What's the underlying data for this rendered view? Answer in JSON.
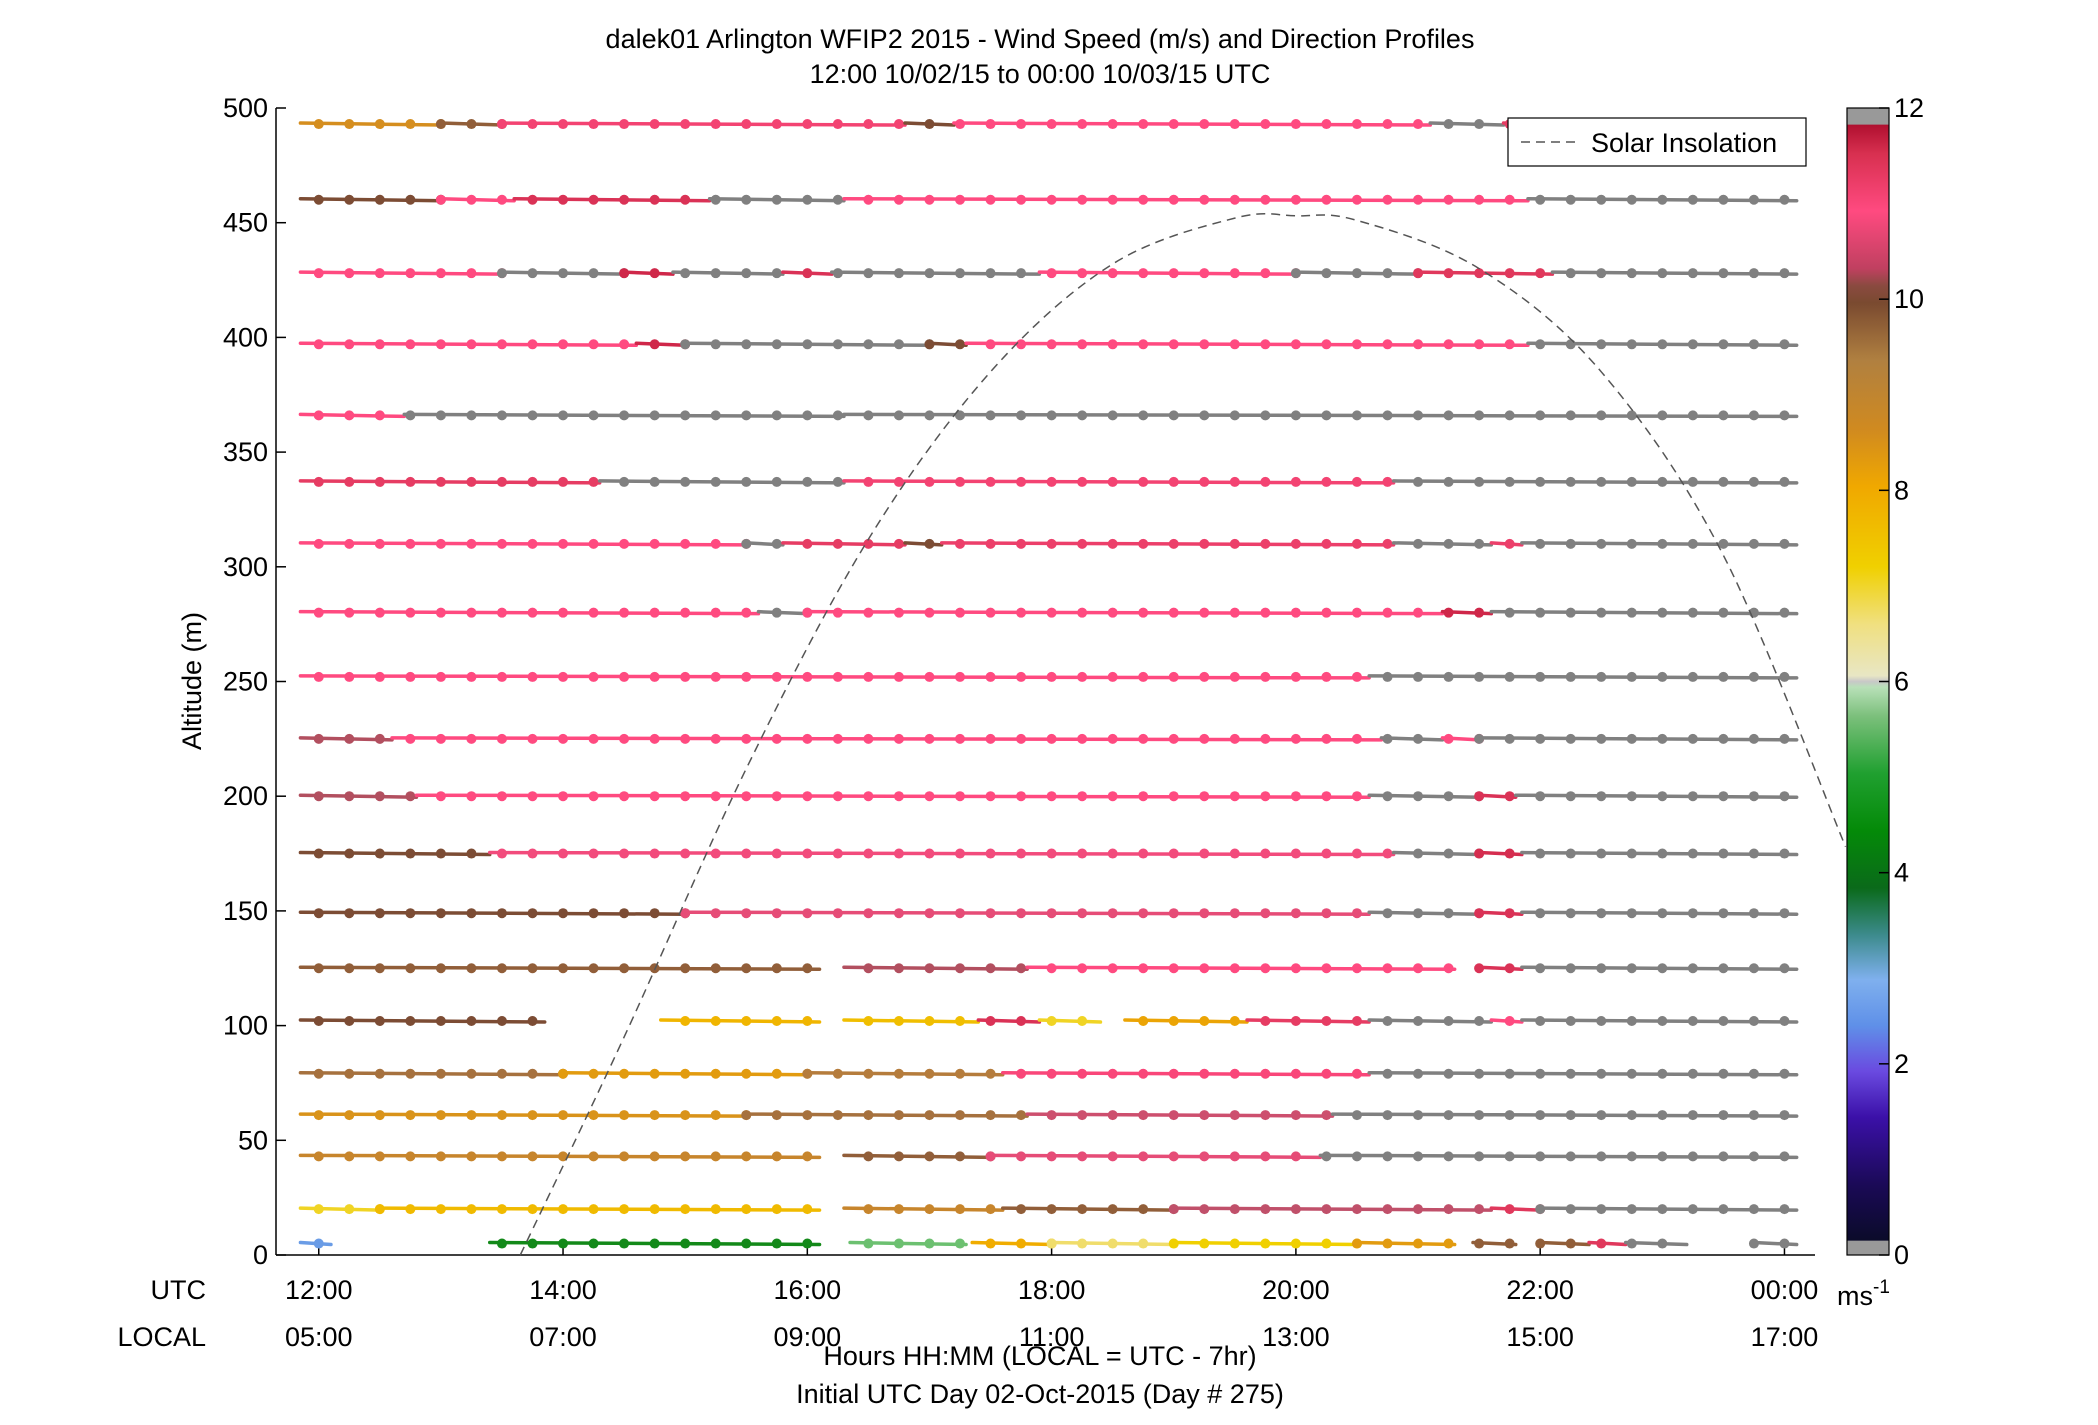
{
  "chart_data": {
    "type": "wind-barb-profile",
    "title": "dalek01 Arlington WFIP2 2015 - Wind Speed (m/s) and Direction Profiles",
    "subtitle": "12:00 10/02/15 to 00:00 10/03/15  UTC",
    "ylabel": "Altitude (m)",
    "ylim": [
      0,
      500
    ],
    "yticks": [
      0,
      50,
      100,
      150,
      200,
      250,
      300,
      350,
      400,
      450,
      500
    ],
    "xlim_hours": [
      11.65,
      24.25
    ],
    "x_utc_row_label": "UTC",
    "x_local_row_label": "LOCAL",
    "x_ticks_utc": [
      "12:00",
      "14:00",
      "16:00",
      "18:00",
      "20:00",
      "22:00",
      "00:00"
    ],
    "x_ticks_local": [
      "05:00",
      "07:00",
      "09:00",
      "11:00",
      "13:00",
      "15:00",
      "17:00"
    ],
    "x_tick_hours": [
      12,
      14,
      16,
      18,
      20,
      22,
      24
    ],
    "xlabel": "Hours HH:MM  (LOCAL = UTC - 7hr)",
    "xlabel2": "Initial UTC Day 02-Oct-2015 (Day # 275)",
    "legend": [
      "Solar Insolation"
    ],
    "legend_position": "top-right",
    "colorbar": {
      "range": [
        0,
        12
      ],
      "ticks": [
        0,
        2,
        4,
        6,
        8,
        10,
        12
      ],
      "unit_base": "ms",
      "unit_exp": "-1"
    },
    "solar_insolation_curve": {
      "description_free": false,
      "x_hours": [
        13.65,
        14.5,
        15.5,
        16.5,
        17.5,
        18.5,
        19.5,
        20.0,
        20.5,
        21.5,
        22.5,
        23.5,
        24.5
      ],
      "y_altitude": [
        0,
        95,
        212,
        312,
        385,
        432,
        452,
        453,
        451,
        430,
        385,
        305,
        178
      ]
    },
    "levels_m": [
      5,
      20,
      43,
      61,
      79,
      102,
      125,
      149,
      175,
      200,
      225,
      252,
      280,
      310,
      337,
      366,
      397,
      428,
      460,
      493
    ],
    "series": [
      {
        "alt": 5,
        "start": 11.85,
        "end": 12.1,
        "speed": 2.3
      },
      {
        "alt": 5,
        "start": 13.4,
        "end": 16.1,
        "speed": 4.0
      },
      {
        "alt": 5,
        "start": 16.35,
        "end": 17.3,
        "speed": 5.2
      },
      {
        "alt": 5,
        "start": 17.35,
        "end": 18.0,
        "speed": 7.8
      },
      {
        "alt": 5,
        "start": 18.0,
        "end": 19.0,
        "speed": 6.4
      },
      {
        "alt": 5,
        "start": 19.0,
        "end": 20.5,
        "speed": 7.0
      },
      {
        "alt": 5,
        "start": 20.5,
        "end": 21.3,
        "speed": 8.2
      },
      {
        "alt": 5,
        "start": 21.45,
        "end": 21.8,
        "speed": 9.6
      },
      {
        "alt": 5,
        "start": 22.0,
        "end": 22.4,
        "speed": 9.6
      },
      {
        "alt": 5,
        "start": 22.4,
        "end": 22.7,
        "speed": 11.3
      },
      {
        "alt": 5,
        "start": 22.7,
        "end": 23.2,
        "speed": 12.5
      },
      {
        "alt": 5,
        "start": 23.75,
        "end": 24.1,
        "speed": 12.5
      },
      {
        "alt": 20,
        "start": 11.85,
        "end": 12.5,
        "speed": 6.8
      },
      {
        "alt": 20,
        "start": 12.5,
        "end": 16.1,
        "speed": 7.5
      },
      {
        "alt": 20,
        "start": 16.3,
        "end": 17.6,
        "speed": 8.8
      },
      {
        "alt": 20,
        "start": 17.6,
        "end": 19.0,
        "speed": 9.6
      },
      {
        "alt": 20,
        "start": 19.0,
        "end": 21.6,
        "speed": 10.3
      },
      {
        "alt": 20,
        "start": 21.6,
        "end": 22.0,
        "speed": 11.3
      },
      {
        "alt": 20,
        "start": 22.0,
        "end": 24.1,
        "speed": 12.5
      },
      {
        "alt": 43,
        "start": 11.85,
        "end": 16.1,
        "speed": 8.8
      },
      {
        "alt": 43,
        "start": 16.3,
        "end": 17.5,
        "speed": 9.6
      },
      {
        "alt": 43,
        "start": 17.5,
        "end": 20.2,
        "speed": 10.6
      },
      {
        "alt": 43,
        "start": 20.2,
        "end": 24.1,
        "speed": 12.5
      },
      {
        "alt": 61,
        "start": 11.85,
        "end": 15.5,
        "speed": 8.4
      },
      {
        "alt": 61,
        "start": 15.5,
        "end": 17.8,
        "speed": 9.4
      },
      {
        "alt": 61,
        "start": 17.8,
        "end": 20.3,
        "speed": 10.4
      },
      {
        "alt": 61,
        "start": 20.3,
        "end": 24.1,
        "speed": 12.5
      },
      {
        "alt": 79,
        "start": 11.85,
        "end": 14.0,
        "speed": 9.4
      },
      {
        "alt": 79,
        "start": 14.0,
        "end": 16.0,
        "speed": 8.2
      },
      {
        "alt": 79,
        "start": 16.0,
        "end": 17.6,
        "speed": 9.2
      },
      {
        "alt": 79,
        "start": 17.6,
        "end": 20.6,
        "speed": 10.9
      },
      {
        "alt": 79,
        "start": 20.6,
        "end": 24.1,
        "speed": 12.5
      },
      {
        "alt": 102,
        "start": 11.85,
        "end": 13.85,
        "speed": 9.8
      },
      {
        "alt": 102,
        "start": 14.8,
        "end": 16.1,
        "speed": 7.6
      },
      {
        "alt": 102,
        "start": 16.3,
        "end": 17.4,
        "speed": 7.4
      },
      {
        "alt": 102,
        "start": 17.4,
        "end": 17.9,
        "speed": 11.4
      },
      {
        "alt": 102,
        "start": 17.9,
        "end": 18.4,
        "speed": 6.8
      },
      {
        "alt": 102,
        "start": 18.6,
        "end": 19.6,
        "speed": 8.0
      },
      {
        "alt": 102,
        "start": 19.6,
        "end": 20.6,
        "speed": 11.2
      },
      {
        "alt": 102,
        "start": 20.6,
        "end": 21.6,
        "speed": 12.5
      },
      {
        "alt": 102,
        "start": 21.6,
        "end": 21.85,
        "speed": 10.8
      },
      {
        "alt": 102,
        "start": 21.85,
        "end": 24.1,
        "speed": 12.5
      },
      {
        "alt": 125,
        "start": 11.85,
        "end": 16.1,
        "speed": 9.6
      },
      {
        "alt": 125,
        "start": 16.3,
        "end": 17.8,
        "speed": 10.2
      },
      {
        "alt": 125,
        "start": 17.8,
        "end": 21.3,
        "speed": 10.8
      },
      {
        "alt": 125,
        "start": 21.5,
        "end": 21.85,
        "speed": 11.4
      },
      {
        "alt": 125,
        "start": 21.85,
        "end": 24.1,
        "speed": 12.5
      },
      {
        "alt": 149,
        "start": 11.85,
        "end": 15.0,
        "speed": 9.8
      },
      {
        "alt": 149,
        "start": 15.0,
        "end": 20.6,
        "speed": 10.6
      },
      {
        "alt": 149,
        "start": 20.6,
        "end": 21.5,
        "speed": 12.5
      },
      {
        "alt": 149,
        "start": 21.5,
        "end": 21.85,
        "speed": 11.4
      },
      {
        "alt": 149,
        "start": 21.85,
        "end": 24.1,
        "speed": 12.5
      },
      {
        "alt": 175,
        "start": 11.85,
        "end": 13.4,
        "speed": 9.8
      },
      {
        "alt": 175,
        "start": 13.4,
        "end": 20.8,
        "speed": 10.7
      },
      {
        "alt": 175,
        "start": 20.8,
        "end": 21.5,
        "speed": 12.5
      },
      {
        "alt": 175,
        "start": 21.5,
        "end": 21.85,
        "speed": 11.5
      },
      {
        "alt": 175,
        "start": 21.85,
        "end": 24.1,
        "speed": 12.5
      },
      {
        "alt": 200,
        "start": 11.85,
        "end": 12.8,
        "speed": 10.2
      },
      {
        "alt": 200,
        "start": 12.8,
        "end": 20.6,
        "speed": 10.8
      },
      {
        "alt": 200,
        "start": 20.6,
        "end": 21.5,
        "speed": 12.5
      },
      {
        "alt": 200,
        "start": 21.5,
        "end": 21.8,
        "speed": 11.4
      },
      {
        "alt": 200,
        "start": 21.8,
        "end": 24.1,
        "speed": 12.5
      },
      {
        "alt": 225,
        "start": 11.85,
        "end": 12.6,
        "speed": 10.2
      },
      {
        "alt": 225,
        "start": 12.6,
        "end": 20.7,
        "speed": 10.8
      },
      {
        "alt": 225,
        "start": 20.7,
        "end": 21.2,
        "speed": 12.5
      },
      {
        "alt": 225,
        "start": 21.2,
        "end": 21.5,
        "speed": 10.8
      },
      {
        "alt": 225,
        "start": 21.5,
        "end": 24.1,
        "speed": 12.5
      },
      {
        "alt": 252,
        "start": 11.85,
        "end": 20.6,
        "speed": 10.8
      },
      {
        "alt": 252,
        "start": 20.6,
        "end": 24.1,
        "speed": 12.5
      },
      {
        "alt": 280,
        "start": 11.85,
        "end": 15.6,
        "speed": 10.8
      },
      {
        "alt": 280,
        "start": 15.6,
        "end": 16.0,
        "speed": 12.5
      },
      {
        "alt": 280,
        "start": 16.0,
        "end": 21.2,
        "speed": 10.8
      },
      {
        "alt": 280,
        "start": 21.2,
        "end": 21.6,
        "speed": 11.6
      },
      {
        "alt": 280,
        "start": 21.6,
        "end": 24.1,
        "speed": 12.5
      },
      {
        "alt": 310,
        "start": 11.85,
        "end": 15.5,
        "speed": 10.8
      },
      {
        "alt": 310,
        "start": 15.5,
        "end": 15.8,
        "speed": 12.5
      },
      {
        "alt": 310,
        "start": 15.8,
        "end": 16.8,
        "speed": 11.2
      },
      {
        "alt": 310,
        "start": 16.8,
        "end": 17.1,
        "speed": 9.8
      },
      {
        "alt": 310,
        "start": 17.1,
        "end": 20.8,
        "speed": 11.1
      },
      {
        "alt": 310,
        "start": 20.8,
        "end": 21.6,
        "speed": 12.5
      },
      {
        "alt": 310,
        "start": 21.6,
        "end": 21.85,
        "speed": 11.1
      },
      {
        "alt": 310,
        "start": 21.85,
        "end": 24.1,
        "speed": 12.5
      },
      {
        "alt": 337,
        "start": 11.85,
        "end": 14.3,
        "speed": 11.2
      },
      {
        "alt": 337,
        "start": 14.3,
        "end": 16.3,
        "speed": 12.5
      },
      {
        "alt": 337,
        "start": 16.3,
        "end": 20.8,
        "speed": 11.0
      },
      {
        "alt": 337,
        "start": 20.8,
        "end": 24.1,
        "speed": 12.5
      },
      {
        "alt": 366,
        "start": 11.85,
        "end": 12.7,
        "speed": 10.8
      },
      {
        "alt": 366,
        "start": 12.7,
        "end": 16.3,
        "speed": 12.5
      },
      {
        "alt": 366,
        "start": 16.3,
        "end": 24.1,
        "speed": 12.5
      },
      {
        "alt": 397,
        "start": 11.85,
        "end": 14.6,
        "speed": 10.8
      },
      {
        "alt": 397,
        "start": 14.6,
        "end": 15.0,
        "speed": 11.6
      },
      {
        "alt": 397,
        "start": 15.0,
        "end": 17.0,
        "speed": 12.5
      },
      {
        "alt": 397,
        "start": 17.0,
        "end": 17.3,
        "speed": 9.8
      },
      {
        "alt": 397,
        "start": 17.3,
        "end": 21.9,
        "speed": 10.8
      },
      {
        "alt": 397,
        "start": 21.9,
        "end": 24.1,
        "speed": 12.5
      },
      {
        "alt": 428,
        "start": 11.85,
        "end": 13.5,
        "speed": 10.8
      },
      {
        "alt": 428,
        "start": 13.5,
        "end": 14.5,
        "speed": 12.5
      },
      {
        "alt": 428,
        "start": 14.5,
        "end": 14.9,
        "speed": 11.6
      },
      {
        "alt": 428,
        "start": 14.9,
        "end": 15.8,
        "speed": 12.5
      },
      {
        "alt": 428,
        "start": 15.8,
        "end": 16.2,
        "speed": 11.4
      },
      {
        "alt": 428,
        "start": 16.2,
        "end": 17.9,
        "speed": 12.5
      },
      {
        "alt": 428,
        "start": 17.9,
        "end": 20.0,
        "speed": 10.8
      },
      {
        "alt": 428,
        "start": 20.0,
        "end": 21.0,
        "speed": 12.5
      },
      {
        "alt": 428,
        "start": 21.0,
        "end": 22.1,
        "speed": 11.3
      },
      {
        "alt": 428,
        "start": 22.1,
        "end": 24.1,
        "speed": 12.5
      },
      {
        "alt": 460,
        "start": 11.85,
        "end": 13.0,
        "speed": 9.8
      },
      {
        "alt": 460,
        "start": 13.0,
        "end": 13.6,
        "speed": 10.8
      },
      {
        "alt": 460,
        "start": 13.6,
        "end": 15.2,
        "speed": 11.4
      },
      {
        "alt": 460,
        "start": 15.2,
        "end": 16.3,
        "speed": 12.5
      },
      {
        "alt": 460,
        "start": 16.3,
        "end": 21.9,
        "speed": 10.8
      },
      {
        "alt": 460,
        "start": 21.9,
        "end": 24.1,
        "speed": 12.5
      },
      {
        "alt": 493,
        "start": 11.85,
        "end": 13.0,
        "speed": 8.5
      },
      {
        "alt": 493,
        "start": 13.0,
        "end": 13.5,
        "speed": 9.6
      },
      {
        "alt": 493,
        "start": 13.5,
        "end": 16.8,
        "speed": 11.0
      },
      {
        "alt": 493,
        "start": 16.8,
        "end": 17.2,
        "speed": 9.8
      },
      {
        "alt": 493,
        "start": 17.2,
        "end": 21.1,
        "speed": 10.8
      },
      {
        "alt": 493,
        "start": 21.1,
        "end": 21.7,
        "speed": 12.5
      },
      {
        "alt": 493,
        "start": 21.7,
        "end": 22.0,
        "speed": 11.2
      }
    ],
    "grid": false
  },
  "colors": {
    "axis": "#000000",
    "solar_curve": "#555555",
    "missing_gray": "#808080"
  }
}
